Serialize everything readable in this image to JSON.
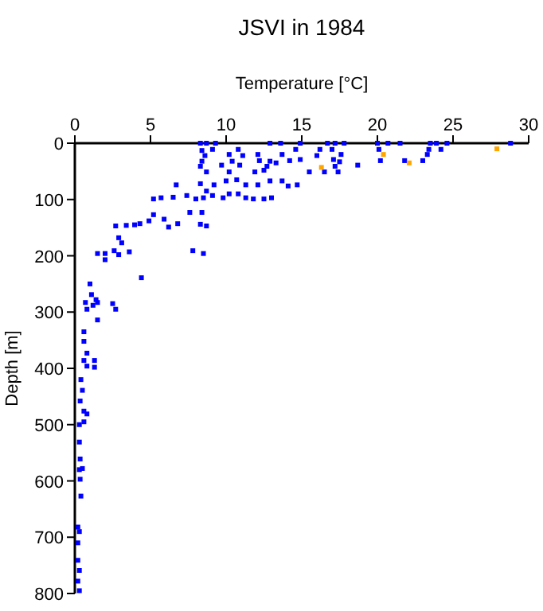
{
  "chart_data": {
    "type": "scatter",
    "title": "JSVI in 1984",
    "xlabel": "Temperature [°C]",
    "ylabel": "Depth [m]",
    "xlim": [
      0,
      30
    ],
    "xticks": [
      0,
      5,
      10,
      15,
      20,
      25,
      30
    ],
    "ylim": [
      800,
      0
    ],
    "yticks": [
      0,
      100,
      200,
      300,
      400,
      500,
      600,
      700,
      800
    ],
    "marker": "square",
    "grid": false,
    "series": [
      {
        "color": "#0000ff",
        "x": [
          8.3,
          8.7,
          9.3,
          8.4,
          8.6,
          8.4,
          8.3,
          8.7,
          9.1,
          10.2,
          10.8,
          11.1,
          12.1,
          10.4,
          10.9,
          9.7,
          10.2,
          11.9,
          12.9,
          13.6,
          14.9,
          14.6,
          13.7,
          14.2,
          14.9,
          12.9,
          12.7,
          12.5,
          13.3,
          12.2,
          16.7,
          17.2,
          17.8,
          16.2,
          17.0,
          17.6,
          16.0,
          17.1,
          17.5,
          17.2,
          17.4,
          16.5,
          15.5,
          18.7,
          20.0,
          20.7,
          21.5,
          20.1,
          20.2,
          21.8,
          23.0,
          23.3,
          23.5,
          23.9,
          24.6,
          24.2,
          23.4,
          28.8,
          6.7,
          8.3,
          9.2,
          8.7,
          10.0,
          10.7,
          11.3,
          12.1,
          12.9,
          13.7,
          14.1,
          14.7,
          9.1,
          10.2,
          10.8,
          11.3,
          11.8,
          12.5,
          13.0,
          5.2,
          5.7,
          6.5,
          7.4,
          8.0,
          8.5,
          9.8,
          5.2,
          5.9,
          7.6,
          8.4,
          2.7,
          3.4,
          3.95,
          4.3,
          4.9,
          6.2,
          6.8,
          8.3,
          8.7,
          2.9,
          3.1,
          1.5,
          2.0,
          2.6,
          2.9,
          3.6,
          2.0,
          4.4,
          7.8,
          8.5,
          1.0,
          1.1,
          1.4,
          0.7,
          1.2,
          0.8,
          1.5,
          2.5,
          2.7,
          1.5,
          0.6,
          0.6,
          0.8,
          0.6,
          0.8,
          1.3,
          1.3,
          0.4,
          0.5,
          0.35,
          0.6,
          0.8,
          0.3,
          0.6,
          0.3,
          0.35,
          0.3,
          0.5,
          0.35,
          0.4,
          0.2,
          0.3,
          0.2,
          0.2,
          0.3,
          0.2,
          0.3
        ],
        "values": [
          0,
          0,
          0,
          13,
          22,
          32,
          41,
          51,
          11,
          20,
          11,
          22,
          20,
          32,
          39,
          39,
          51,
          51,
          0,
          0,
          0,
          11,
          20,
          31,
          29,
          32,
          41,
          48,
          35,
          31,
          0,
          0,
          0,
          11,
          11,
          20,
          22,
          29,
          33,
          41,
          51,
          51,
          51,
          39,
          0,
          0,
          0,
          11,
          31,
          31,
          31,
          20,
          0,
          0,
          0,
          11,
          11,
          0,
          74,
          72,
          74,
          85,
          67,
          65,
          74,
          74,
          67,
          67,
          76,
          74,
          93,
          90,
          90,
          97,
          99,
          99,
          97,
          99,
          97,
          96,
          93,
          99,
          97,
          97,
          127,
          135,
          123,
          123,
          147,
          146,
          145,
          143,
          138,
          149,
          143,
          144,
          147,
          168,
          177,
          196,
          196,
          191,
          198,
          193,
          207,
          239,
          191,
          196,
          250,
          269,
          278,
          283,
          288,
          295,
          283,
          285,
          295,
          314,
          335,
          352,
          373,
          386,
          396,
          386,
          398,
          420,
          439,
          458,
          476,
          481,
          500,
          495,
          531,
          561,
          580,
          578,
          597,
          627,
          682,
          690,
          710,
          741,
          759,
          778,
          795
        ]
      },
      {
        "color": "#ffa500",
        "x": [
          20.4,
          16.3,
          22.1,
          27.9
        ],
        "values": [
          20,
          43,
          35,
          10
        ]
      }
    ]
  }
}
